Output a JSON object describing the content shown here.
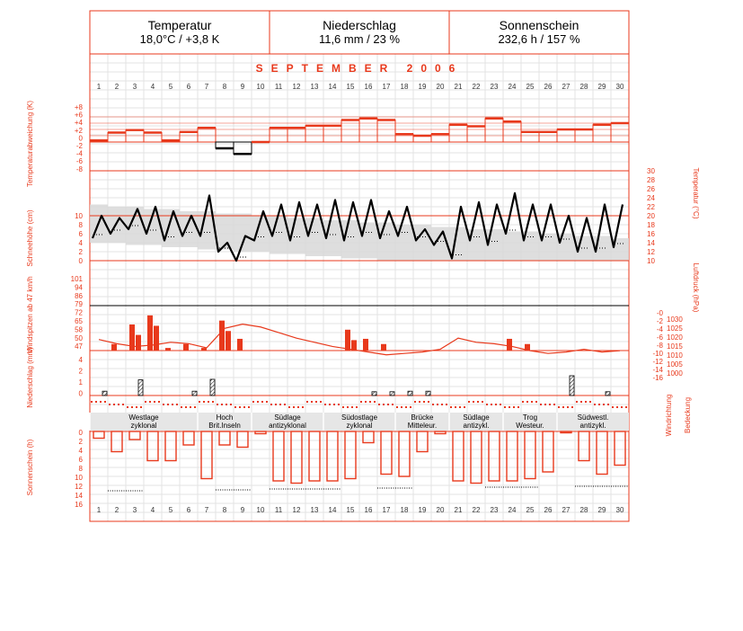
{
  "header": {
    "temperature": {
      "title": "Temperatur",
      "value": "18,0°C / +3,8 K"
    },
    "precipitation": {
      "title": "Niederschlag",
      "value": "11,6 mm / 23 %"
    },
    "sunshine": {
      "title": "Sonnenschein",
      "value": "232,6 h / 157 %"
    }
  },
  "month_title": "SEPTEMBER  2006",
  "colors": {
    "red": "#e8391c",
    "grey": "#d8d8d8",
    "black": "#000000",
    "grid": "#e3e3e3"
  },
  "chart_data": [
    {
      "type": "bar",
      "name": "temperature-deviation",
      "ylabel": "Temperaturabweichung (K)",
      "ytick_labels": [
        "+8",
        "+6",
        "+4",
        "+2",
        "0",
        "-2",
        "-4",
        "-6",
        "-8"
      ],
      "ylim": [
        -8,
        8
      ],
      "x": [
        1,
        2,
        3,
        4,
        5,
        6,
        7,
        8,
        9,
        10,
        11,
        12,
        13,
        14,
        15,
        16,
        17,
        18,
        19,
        20,
        21,
        22,
        23,
        24,
        25,
        26,
        27,
        28,
        29,
        30
      ],
      "values": [
        0.5,
        3,
        3.8,
        3,
        0.5,
        3.2,
        4.5,
        -2,
        -3.8,
        0,
        4.5,
        4.5,
        5.2,
        5.2,
        7,
        7.5,
        7,
        2.5,
        2,
        2.5,
        5.5,
        5,
        7.5,
        6.5,
        3.2,
        3.2,
        4,
        4,
        5.5,
        6
      ]
    },
    {
      "type": "line",
      "name": "temperature",
      "ylabel": "Temperatur (°C)",
      "ytick_labels": [
        "30",
        "28",
        "26",
        "24",
        "22",
        "20",
        "18",
        "16",
        "14",
        "12",
        "10"
      ],
      "ylim": [
        10,
        30
      ],
      "daily_max": [
        20,
        19.5,
        21.5,
        22,
        21,
        20,
        24.5,
        14,
        15.5,
        21,
        22.5,
        23,
        22.5,
        23.5,
        23,
        23.5,
        21,
        22,
        17,
        16.5,
        22,
        23,
        22.5,
        25,
        22.5,
        22.5,
        20,
        19.5,
        22.5,
        22.5
      ],
      "daily_min": [
        15,
        16,
        17,
        16,
        14.5,
        15.5,
        15.5,
        12,
        10,
        14.5,
        15.5,
        14.5,
        15.5,
        15,
        14.5,
        15.5,
        15,
        15.5,
        14.5,
        13.5,
        10.5,
        14.5,
        13.5,
        16,
        14.5,
        14.5,
        14,
        12,
        12,
        13
      ],
      "normal_range_max": [
        22.5,
        22,
        22,
        21.5,
        21.5,
        21,
        21,
        20.5,
        20.5,
        20,
        20,
        19.5,
        19.5,
        19,
        19,
        18.5,
        18.5,
        18,
        18,
        17.5,
        17.5,
        17,
        17,
        16.5,
        16.5,
        16,
        16,
        15.5,
        15.5,
        15
      ],
      "normal_range_min": [
        14,
        14,
        13.5,
        13.5,
        13,
        13,
        12.5,
        12.5,
        12,
        12,
        11.5,
        11.5,
        11,
        11,
        10.5,
        10.5,
        10,
        10,
        10,
        10,
        10,
        10,
        10,
        10,
        10,
        10,
        10,
        10,
        10,
        10
      ]
    },
    {
      "type": "bar",
      "name": "snow-depth",
      "ylabel": "Schneehöhe (cm)",
      "ytick_labels": [
        "10",
        "8",
        "6",
        "4",
        "2",
        "0"
      ],
      "ylim": [
        0,
        10
      ],
      "values": [
        0,
        0,
        0,
        0,
        0,
        0,
        0,
        0,
        0,
        0,
        0,
        0,
        0,
        0,
        0,
        0,
        0,
        0,
        0,
        0,
        0,
        0,
        0,
        0,
        0,
        0,
        0,
        0,
        0,
        0
      ]
    },
    {
      "type": "line",
      "name": "air-pressure",
      "ylabel": "Luftdruck (hPa)",
      "ytick_labels": [
        "1030",
        "1025",
        "1020",
        "1015",
        "1010",
        "1005",
        "1000"
      ],
      "ylim": [
        995,
        1035
      ],
      "values": [
        1021,
        1018,
        1016,
        1017,
        1019,
        1018,
        1015,
        1029,
        1032,
        1030,
        1026,
        1022,
        1019,
        1016,
        1014,
        1012,
        1010,
        1011,
        1012,
        1014,
        1022,
        1019,
        1018,
        1016,
        1013,
        1011,
        1012,
        1014,
        1012,
        1013
      ]
    },
    {
      "type": "bar",
      "name": "wind-gusts",
      "ylabel": "Windspitzen ab 47 km/h",
      "ytick_labels": [
        "101",
        "94",
        "86",
        "79",
        "72",
        "65",
        "58",
        "50",
        "47"
      ],
      "values": [
        0,
        50,
        65,
        72,
        47,
        50,
        47,
        68,
        54,
        0,
        0,
        0,
        0,
        0,
        61,
        54,
        50,
        0,
        0,
        0,
        0,
        0,
        0,
        54,
        50,
        0,
        0,
        0,
        0,
        0
      ]
    },
    {
      "type": "bar",
      "name": "precipitation",
      "ylabel": "Niederschlag (mm)",
      "ytick_labels": [
        "4",
        "2",
        "1",
        "0"
      ],
      "values": [
        0.3,
        0,
        2.4,
        0,
        0,
        0.3,
        2.5,
        0,
        0,
        0,
        0,
        0,
        0,
        0,
        0,
        0.2,
        0.2,
        0.3,
        0.3,
        0,
        0,
        0,
        0,
        0,
        0,
        0,
        3.6,
        0,
        0.2,
        0
      ]
    },
    {
      "type": "bar",
      "name": "sunshine",
      "ylabel": "Sonnenschein (h)",
      "ytick_labels": [
        "0",
        "2",
        "4",
        "6",
        "8",
        "10",
        "12",
        "14",
        "16"
      ],
      "ylim": [
        0,
        16
      ],
      "values": [
        1.5,
        4.5,
        1.8,
        6.5,
        6.5,
        3,
        10.5,
        3,
        3.5,
        0.5,
        11,
        11.5,
        11,
        11,
        10.5,
        2.5,
        9.5,
        10,
        4.5,
        0.5,
        11,
        11.5,
        11,
        11,
        10.5,
        9,
        0.3,
        6.5,
        9.5,
        7.5
      ]
    }
  ],
  "pressure_right_labels": [
    "-0",
    "-2",
    "-4",
    "-6",
    "-8",
    "-10",
    "-12",
    "-14",
    "-16"
  ],
  "wind_cloud_labels": [
    "Windrichtung",
    "Bedeckung"
  ],
  "weather_types": [
    {
      "label1": "Westlage",
      "label2": "zyklonal",
      "start": 1,
      "end": 7
    },
    {
      "label1": "Hoch",
      "label2": "Brit.Inseln",
      "start": 7,
      "end": 10
    },
    {
      "label1": "Südlage",
      "label2": "antizyklonal",
      "start": 10,
      "end": 14
    },
    {
      "label1": "Südostlage",
      "label2": "zyklonal",
      "start": 14,
      "end": 18
    },
    {
      "label1": "Brücke",
      "label2": "Mitteleur.",
      "start": 18,
      "end": 21
    },
    {
      "label1": "Südlage",
      "label2": "antizykl.",
      "start": 21,
      "end": 24
    },
    {
      "label1": "Trog",
      "label2": "Westeur.",
      "start": 24,
      "end": 27
    },
    {
      "label1": "Südwestl.",
      "label2": "antizykl.",
      "start": 27,
      "end": 31
    }
  ],
  "days": [
    "1",
    "2",
    "3",
    "4",
    "5",
    "6",
    "7",
    "8",
    "9",
    "10",
    "11",
    "12",
    "13",
    "14",
    "15",
    "16",
    "17",
    "18",
    "19",
    "20",
    "21",
    "22",
    "23",
    "24",
    "25",
    "26",
    "27",
    "28",
    "29",
    "30"
  ]
}
